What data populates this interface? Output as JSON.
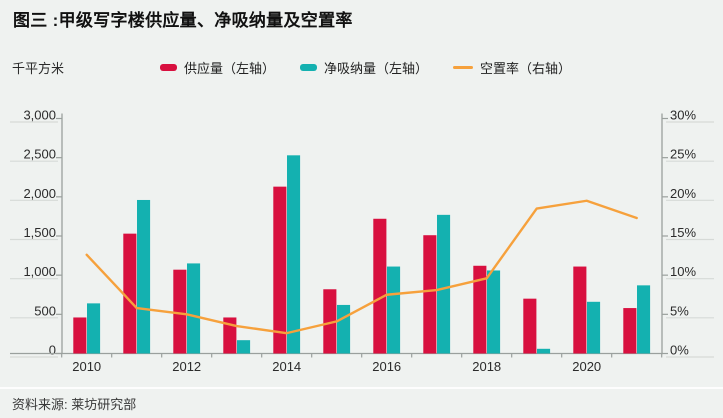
{
  "header": {
    "title": "图三 :甲级写字楼供应量、净吸纳量及空置率"
  },
  "unit_label": "千平方米",
  "legend": {
    "items": [
      {
        "label": "供应量（左轴）",
        "color": "#d8103f",
        "type": "bar"
      },
      {
        "label": "净吸纳量（左轴）",
        "color": "#14b1b0",
        "type": "bar"
      },
      {
        "label": "空置率（右轴）",
        "color": "#f6a13c",
        "type": "line"
      }
    ]
  },
  "chart_data": {
    "type": "bar",
    "subtype": "grouped bars + line overlay (combo)",
    "title": "图三 :甲级写字楼供应量、净吸纳量及空置率",
    "categories": [
      "2010",
      "2011",
      "2012",
      "2013",
      "2014",
      "2015",
      "2016",
      "2017",
      "2018",
      "2019",
      "2020",
      "2021"
    ],
    "x_tick_labels_shown": [
      "2010",
      "2012",
      "2014",
      "2016",
      "2018",
      "2020"
    ],
    "series": [
      {
        "name": "供应量（左轴）",
        "type": "bar",
        "axis": "left",
        "color": "#d8103f",
        "values": [
          460,
          1530,
          1070,
          460,
          2130,
          820,
          1720,
          1510,
          1120,
          700,
          1110,
          580
        ]
      },
      {
        "name": "净吸纳量（左轴）",
        "type": "bar",
        "axis": "left",
        "color": "#14b1b0",
        "values": [
          640,
          1960,
          1150,
          170,
          2530,
          620,
          1110,
          1770,
          1060,
          60,
          660,
          870
        ]
      },
      {
        "name": "空置率（右轴）",
        "type": "line",
        "axis": "right",
        "color": "#f6a13c",
        "values_percent": [
          12.6,
          5.8,
          5.0,
          3.5,
          2.6,
          4.1,
          7.5,
          8.1,
          9.6,
          18.5,
          19.5,
          17.3
        ]
      }
    ],
    "left_axis": {
      "label": "千平方米",
      "min": 0,
      "max": 3000,
      "step": 500,
      "tick_labels": [
        "0",
        "500",
        "1,000",
        "1,500",
        "2,000",
        "2,500",
        "3,000"
      ]
    },
    "right_axis": {
      "min": 0,
      "max": 30,
      "step": 5,
      "tick_labels": [
        "0%",
        "5%",
        "10%",
        "15%",
        "20%",
        "25%",
        "30%"
      ]
    },
    "grid": "short tick underlines beside axis labels only",
    "legend_position": "top"
  },
  "footer": {
    "source": "资料来源: 莱坊研究部"
  }
}
